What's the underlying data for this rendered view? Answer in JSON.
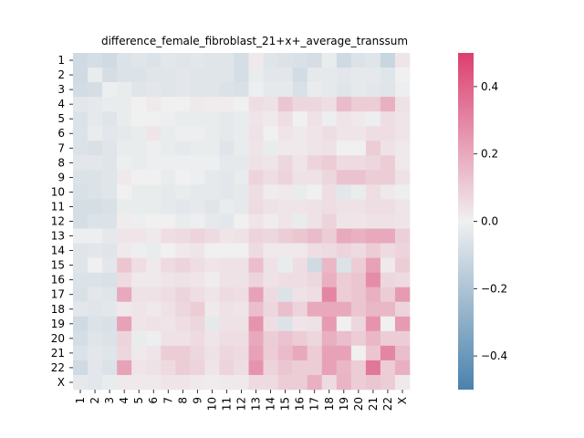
{
  "chart_data": {
    "type": "heatmap",
    "title": "difference_female_fibroblast_21+x+_average_transsum",
    "xlabel": "",
    "ylabel": "",
    "x_labels": [
      "1",
      "2",
      "3",
      "4",
      "5",
      "6",
      "7",
      "8",
      "9",
      "10",
      "11",
      "12",
      "13",
      "14",
      "15",
      "16",
      "17",
      "18",
      "19",
      "20",
      "21",
      "22",
      "X"
    ],
    "y_labels": [
      "1",
      "2",
      "3",
      "4",
      "5",
      "6",
      "7",
      "8",
      "9",
      "10",
      "11",
      "12",
      "13",
      "14",
      "15",
      "16",
      "17",
      "18",
      "19",
      "20",
      "21",
      "22",
      "X"
    ],
    "vmin": -0.5,
    "vmax": 0.5,
    "colorbar_ticks": [
      -0.4,
      -0.2,
      0.0,
      0.2,
      0.4
    ],
    "colorbar_tick_labels": [
      "−0.4",
      "−0.2",
      "0.0",
      "0.2",
      "0.4"
    ],
    "colormap": {
      "low": "#4a82ad",
      "mid": "#f0f0f0",
      "high": "#dc3f70"
    },
    "values": [
      [
        -0.1,
        -0.08,
        -0.1,
        -0.06,
        -0.05,
        -0.06,
        -0.04,
        -0.05,
        -0.04,
        -0.05,
        -0.05,
        -0.08,
        0.02,
        -0.05,
        -0.06,
        -0.07,
        -0.08,
        -0.02,
        -0.1,
        -0.06,
        -0.05,
        -0.12,
        0.03
      ],
      [
        -0.1,
        -0.02,
        -0.08,
        -0.06,
        -0.06,
        -0.05,
        -0.05,
        -0.04,
        -0.05,
        -0.05,
        -0.05,
        -0.08,
        -0.02,
        -0.04,
        -0.04,
        -0.09,
        -0.03,
        -0.03,
        -0.04,
        -0.03,
        -0.03,
        -0.05,
        0.0
      ],
      [
        -0.09,
        -0.08,
        -0.01,
        -0.02,
        -0.05,
        -0.04,
        -0.05,
        -0.04,
        -0.05,
        -0.05,
        -0.06,
        -0.07,
        -0.01,
        -0.03,
        -0.03,
        -0.07,
        -0.02,
        -0.03,
        -0.05,
        -0.03,
        -0.04,
        -0.05,
        -0.01
      ],
      [
        -0.04,
        -0.03,
        -0.02,
        -0.02,
        0.0,
        0.02,
        0.0,
        0.0,
        0.02,
        0.01,
        0.01,
        0.0,
        0.05,
        0.04,
        0.12,
        0.07,
        0.07,
        0.05,
        0.15,
        0.1,
        0.1,
        0.18,
        0.04
      ],
      [
        -0.06,
        -0.03,
        -0.05,
        -0.02,
        0.0,
        0.0,
        -0.01,
        -0.02,
        -0.02,
        -0.02,
        -0.03,
        -0.02,
        0.03,
        0.02,
        0.05,
        0.0,
        0.04,
        -0.01,
        0.03,
        0.02,
        -0.01,
        0.05,
        0.03
      ],
      [
        -0.06,
        -0.02,
        -0.04,
        -0.03,
        -0.02,
        0.03,
        -0.02,
        -0.01,
        -0.01,
        -0.02,
        -0.03,
        -0.02,
        0.04,
        0.0,
        0.03,
        0.02,
        0.03,
        0.05,
        0.03,
        0.03,
        0.05,
        0.05,
        0.03
      ],
      [
        -0.06,
        -0.07,
        -0.05,
        -0.02,
        -0.02,
        -0.01,
        -0.02,
        -0.03,
        -0.02,
        -0.02,
        -0.05,
        -0.02,
        0.03,
        -0.02,
        0.02,
        0.02,
        0.03,
        0.04,
        0.0,
        0.0,
        0.1,
        0.04,
        0.02
      ],
      [
        -0.04,
        -0.04,
        -0.05,
        -0.01,
        -0.02,
        -0.01,
        -0.01,
        -0.01,
        -0.01,
        -0.01,
        -0.03,
        -0.03,
        0.04,
        0.03,
        0.07,
        0.03,
        0.08,
        0.1,
        0.06,
        0.06,
        0.07,
        0.1,
        0.02
      ],
      [
        -0.06,
        -0.06,
        -0.05,
        0.02,
        0.0,
        0.0,
        -0.02,
        0.0,
        -0.01,
        -0.03,
        -0.04,
        -0.02,
        0.08,
        0.05,
        0.08,
        0.04,
        0.04,
        0.07,
        0.13,
        0.13,
        0.1,
        0.1,
        0.04
      ],
      [
        -0.07,
        -0.06,
        -0.05,
        0.0,
        -0.02,
        -0.02,
        -0.03,
        -0.02,
        -0.03,
        -0.03,
        -0.04,
        -0.03,
        0.05,
        0.01,
        0.02,
        -0.02,
        0.0,
        0.05,
        -0.04,
        -0.02,
        0.05,
        0.02,
        -0.01
      ],
      [
        -0.08,
        -0.08,
        -0.07,
        -0.02,
        -0.02,
        -0.02,
        -0.03,
        -0.04,
        -0.03,
        -0.05,
        -0.02,
        -0.03,
        0.06,
        0.04,
        0.03,
        0.03,
        0.04,
        0.05,
        0.04,
        0.04,
        0.05,
        0.05,
        0.03
      ],
      [
        -0.08,
        -0.06,
        -0.06,
        0.01,
        -0.01,
        0.0,
        0.0,
        -0.02,
        -0.01,
        -0.03,
        -0.04,
        0.0,
        0.03,
        0.01,
        0.03,
        -0.02,
        0.04,
        0.08,
        0.03,
        0.03,
        0.04,
        0.04,
        0.03
      ],
      [
        -0.01,
        -0.01,
        -0.03,
        0.03,
        0.03,
        0.02,
        0.05,
        0.06,
        0.08,
        0.06,
        0.03,
        0.04,
        0.08,
        0.07,
        0.1,
        0.12,
        0.15,
        0.1,
        0.2,
        0.18,
        0.2,
        0.2,
        0.09
      ],
      [
        -0.05,
        -0.04,
        -0.05,
        0.02,
        -0.01,
        -0.02,
        0.0,
        0.02,
        0.03,
        0.0,
        0.0,
        0.0,
        0.06,
        0.02,
        0.02,
        0.02,
        0.05,
        0.06,
        0.08,
        0.06,
        0.1,
        0.06,
        0.08
      ],
      [
        -0.05,
        0.0,
        -0.04,
        0.12,
        0.05,
        0.02,
        0.06,
        0.08,
        0.05,
        0.03,
        0.04,
        0.04,
        0.14,
        0.04,
        -0.02,
        0.05,
        -0.1,
        0.16,
        -0.06,
        0.1,
        0.22,
        0.02,
        0.1
      ],
      [
        -0.06,
        -0.06,
        -0.07,
        0.06,
        0.02,
        0.02,
        0.03,
        0.04,
        0.03,
        0.01,
        0.04,
        0.04,
        0.08,
        0.04,
        0.05,
        0.05,
        0.07,
        0.18,
        0.1,
        0.12,
        0.28,
        0.07,
        0.06
      ],
      [
        -0.07,
        -0.04,
        -0.05,
        0.2,
        0.04,
        0.04,
        0.05,
        0.08,
        0.05,
        0.03,
        0.06,
        0.05,
        0.22,
        0.06,
        -0.06,
        0.04,
        0.05,
        0.3,
        0.1,
        0.12,
        0.18,
        0.1,
        0.24
      ],
      [
        -0.04,
        -0.05,
        -0.04,
        0.02,
        0.03,
        0.02,
        0.04,
        0.07,
        0.1,
        0.02,
        0.04,
        0.03,
        0.14,
        0.07,
        0.14,
        0.08,
        0.2,
        0.2,
        0.2,
        0.12,
        0.16,
        0.16,
        0.08
      ],
      [
        -0.1,
        -0.06,
        -0.07,
        0.22,
        0.03,
        0.04,
        0.03,
        0.05,
        0.07,
        -0.03,
        0.04,
        0.04,
        0.26,
        0.05,
        -0.06,
        0.03,
        0.04,
        0.24,
        0.0,
        0.07,
        0.26,
        0.0,
        0.24
      ],
      [
        -0.08,
        -0.05,
        -0.06,
        0.08,
        -0.02,
        -0.01,
        0.04,
        0.04,
        0.06,
        0.03,
        0.05,
        0.05,
        0.2,
        0.1,
        0.13,
        0.1,
        0.07,
        0.18,
        0.14,
        0.1,
        0.16,
        0.1,
        0.1
      ],
      [
        -0.06,
        -0.04,
        -0.05,
        0.07,
        0.02,
        0.03,
        0.1,
        0.1,
        0.07,
        0.04,
        0.07,
        0.06,
        0.22,
        0.1,
        0.15,
        0.2,
        0.1,
        0.22,
        0.22,
        0.0,
        0.12,
        0.3,
        0.14
      ],
      [
        -0.1,
        -0.04,
        -0.06,
        0.22,
        0.03,
        0.04,
        0.06,
        0.1,
        0.08,
        0.03,
        0.08,
        0.05,
        0.26,
        0.08,
        0.12,
        0.1,
        0.1,
        0.22,
        0.16,
        0.1,
        0.34,
        0.1,
        0.18
      ],
      [
        -0.03,
        -0.04,
        -0.02,
        0.02,
        0.02,
        0.02,
        0.03,
        0.03,
        0.02,
        0.01,
        0.02,
        0.02,
        0.06,
        0.06,
        0.1,
        0.1,
        0.18,
        0.06,
        0.17,
        0.1,
        0.12,
        0.1,
        0.02
      ]
    ]
  }
}
